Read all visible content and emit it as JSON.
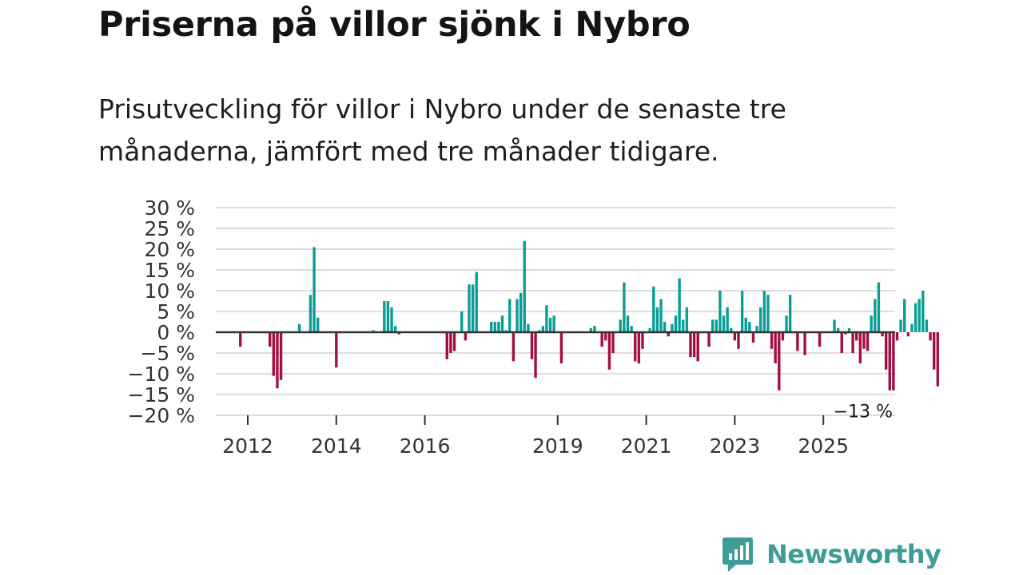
{
  "title": "Priserna på villor sjönk i Nybro",
  "subtitle": "Prisutveckling för villor i Nybro under de senaste tre månaderna, jämfört med tre månader tidigare.",
  "brand": {
    "name": "Newsworthy",
    "icon": "newsworthy-logo-icon"
  },
  "colors": {
    "positive": "#0a9e96",
    "negative": "#a50e45",
    "grid": "#dddddd",
    "zero_line": "#333333",
    "brand": "#3e9c97"
  },
  "chart_data": {
    "type": "bar",
    "title": "",
    "xlabel": "",
    "ylabel": "",
    "ylim": [
      -20,
      30
    ],
    "y_ticks": [
      30,
      25,
      20,
      15,
      10,
      5,
      0,
      -5,
      -10,
      -15,
      -20
    ],
    "y_tick_labels": [
      "30 %",
      "25 %",
      "20 %",
      "15 %",
      "10 %",
      "5 %",
      "0 %",
      "−5 %",
      "−10 %",
      "−15 %",
      "−20 %"
    ],
    "x_ticks": [
      {
        "label": "2012",
        "x": 2012
      },
      {
        "label": "2014",
        "x": 2014
      },
      {
        "label": "2016",
        "x": 2016
      },
      {
        "label": "2019",
        "x": 2019
      },
      {
        "label": "2021",
        "x": 2021
      },
      {
        "label": "2023",
        "x": 2023
      },
      {
        "label": "2025",
        "x": 2025
      }
    ],
    "x_start": 2011.25,
    "x_step": 0.08333,
    "series": [
      {
        "name": "Prisutveckling",
        "values": [
          null,
          null,
          null,
          null,
          null,
          null,
          null,
          -3.5,
          null,
          null,
          null,
          null,
          null,
          null,
          null,
          -3.5,
          -10.5,
          -13.5,
          -11.5,
          null,
          null,
          null,
          null,
          2,
          null,
          null,
          9,
          20.5,
          3.5,
          null,
          null,
          null,
          null,
          -8.5,
          null,
          null,
          null,
          null,
          null,
          null,
          null,
          null,
          null,
          0.5,
          null,
          null,
          7.5,
          7.5,
          6,
          1.5,
          -0.5,
          null,
          null,
          null,
          null,
          null,
          null,
          null,
          null,
          null,
          null,
          null,
          null,
          -6.5,
          -5,
          -4.5,
          null,
          5,
          -2,
          11.5,
          11.5,
          14.5,
          null,
          null,
          null,
          2.5,
          2.5,
          2.5,
          4,
          0.5,
          8,
          -7,
          8,
          9.5,
          22,
          2,
          -6.5,
          -11,
          0.5,
          1.5,
          6.5,
          3.5,
          4,
          null,
          -7.5,
          null,
          null,
          null,
          null,
          null,
          null,
          null,
          1,
          1.5,
          null,
          -3.5,
          -2,
          -9,
          -5,
          null,
          3,
          12,
          4,
          1.5,
          -7,
          -7.5,
          -4,
          null,
          1,
          11,
          6,
          8,
          2.5,
          -1,
          2,
          4,
          13,
          3,
          6,
          -6,
          -6,
          -7,
          null,
          null,
          -3.5,
          3,
          3,
          10,
          4,
          6,
          1,
          -2,
          -4,
          10,
          3.5,
          2.5,
          -2.5,
          1.5,
          6,
          10,
          9,
          -4,
          -7.5,
          -14,
          -2,
          4,
          9,
          null,
          -4.5,
          null,
          -5.5,
          null,
          null,
          null,
          -3.5,
          null,
          null,
          null,
          3,
          1,
          -5,
          -0.5,
          1,
          -5,
          -2,
          -7.5,
          -4,
          -4.5,
          4,
          8,
          12,
          -1,
          -9,
          -14,
          -14,
          -2,
          3,
          8,
          -1,
          2,
          7,
          8,
          10,
          3,
          -2,
          -9,
          -13
        ]
      }
    ],
    "end_label": "−13 %",
    "end_value": -13
  }
}
